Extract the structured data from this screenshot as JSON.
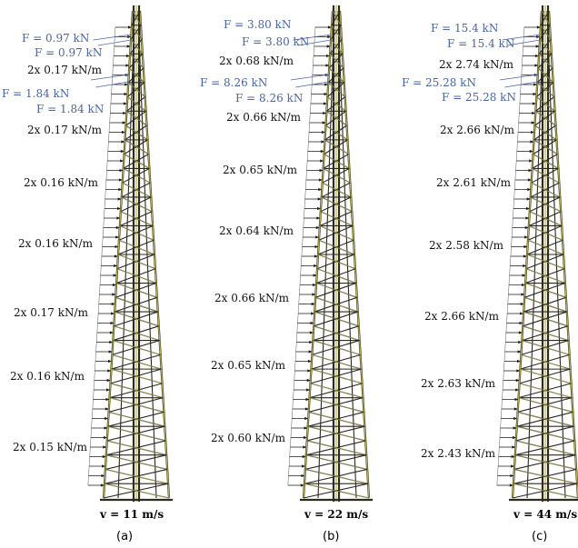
{
  "panels": [
    {
      "id": "a",
      "caption": "(a)",
      "velocity": "v = 11 m/s",
      "point_loads": [
        "F = 0.97 kN",
        "F = 0.97 kN",
        "F = 1.84 kN",
        "F = 1.84 kN"
      ],
      "distributed_loads": [
        "2x 0.17 kN/m",
        "2x 0.17 kN/m",
        "2x 0.16 kN/m",
        "2x 0.16 kN/m",
        "2x 0.17 kN/m",
        "2x 0.16 kN/m",
        "2x 0.15 kN/m"
      ]
    },
    {
      "id": "b",
      "caption": "(b)",
      "velocity": "v = 22 m/s",
      "point_loads": [
        "F = 3.80 kN",
        "F = 3.80 kN",
        "F = 8.26 kN",
        "F = 8.26 kN"
      ],
      "distributed_loads": [
        "2x 0.68 kN/m",
        "2x 0.66 kN/m",
        "2x 0.65 kN/m",
        "2x 0.64 kN/m",
        "2x 0.66 kN/m",
        "2x 0.65 kN/m",
        "2x 0.60 kN/m"
      ]
    },
    {
      "id": "c",
      "caption": "(c)",
      "velocity": "v = 44 m/s",
      "point_loads": [
        "F = 15.4 kN",
        "F = 15.4 kN",
        "F = 25.28 kN",
        "F = 25.28 kN"
      ],
      "distributed_loads": [
        "2x 2.74 kN/m",
        "2x 2.66 kN/m",
        "2x 2.61 kN/m",
        "2x 2.58 kN/m",
        "2x 2.66 kN/m",
        "2x 2.63 kN/m",
        "2x 2.43 kN/m"
      ]
    }
  ],
  "colors": {
    "point_load_text": "#4a64a8",
    "distributed_load_text": "#111111",
    "tower_chord": "#2d2d1e",
    "tower_highlight": "#b9b04e"
  }
}
